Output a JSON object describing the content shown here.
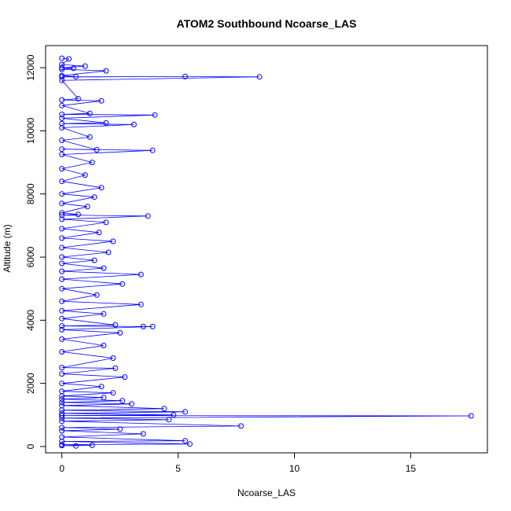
{
  "chart_data": {
    "type": "scatter",
    "title": "ATOM2 Southbound Ncoarse_LAS",
    "xlabel": "Ncoarse_LAS",
    "ylabel": "Altitude (m)",
    "xlim": [
      -0.7,
      18.3
    ],
    "ylim": [
      -200,
      12700
    ],
    "xticks": [
      0,
      5,
      10,
      15
    ],
    "yticks": [
      0,
      2000,
      4000,
      6000,
      8000,
      10000,
      12000
    ],
    "grid": false,
    "color": "#0000ff",
    "markers": "open circles connected by lines",
    "series": [
      {
        "x": [
          0.0,
          0.3,
          0.0,
          1.0,
          0.0,
          0.5,
          0.0,
          1.9,
          0.0,
          0.6,
          0.0,
          5.3,
          8.5,
          0.0,
          0.7,
          0.0,
          1.7,
          0.0,
          1.2,
          0.0,
          4.0,
          0.0,
          1.9,
          0.0,
          3.1,
          0.0,
          1.2,
          0.0,
          1.5,
          0.0,
          3.9,
          0.0,
          1.3,
          0.0,
          1.0,
          0.0,
          1.7,
          0.0,
          1.4,
          0.0,
          1.1,
          0.0,
          0.7,
          0.0,
          3.7,
          0.0,
          1.9,
          0.0,
          1.6,
          0.0,
          2.2,
          0.0,
          2.0,
          0.0,
          1.4,
          0.0,
          1.8,
          0.0,
          3.4,
          0.0,
          2.6,
          0.0,
          1.5,
          0.0,
          3.4,
          0.0,
          1.8,
          0.0,
          2.3,
          0.0,
          3.5,
          3.9,
          0.0,
          2.5,
          0.0,
          1.8,
          0.0,
          2.2,
          0.0,
          2.3,
          0.0,
          2.7,
          0.0,
          1.7,
          0.0,
          2.2,
          0.0,
          1.8,
          0.0,
          2.6,
          0.0,
          3.0,
          0.0,
          4.4,
          0.0,
          5.3,
          0.0,
          4.8,
          0.0,
          17.6,
          0.0,
          4.6,
          0.0,
          7.7,
          0.0,
          2.5,
          0.0,
          3.5,
          0.0,
          5.3,
          0.0,
          5.5,
          0.0,
          1.3,
          0.0,
          0.6
        ],
        "y": [
          12300,
          12280,
          12100,
          12050,
          12000,
          11980,
          11950,
          11900,
          11750,
          11720,
          11710,
          11720,
          11710,
          11600,
          11020,
          10980,
          10950,
          10800,
          10550,
          10520,
          10500,
          10400,
          10250,
          10230,
          10200,
          10100,
          9800,
          9700,
          9400,
          9420,
          9380,
          9250,
          9000,
          8800,
          8600,
          8400,
          8200,
          8000,
          7900,
          7700,
          7600,
          7400,
          7350,
          7330,
          7300,
          7200,
          7100,
          6900,
          6780,
          6600,
          6500,
          6300,
          6150,
          6000,
          5900,
          5800,
          5650,
          5550,
          5450,
          5300,
          5150,
          5000,
          4800,
          4600,
          4500,
          4300,
          4200,
          4050,
          3850,
          3820,
          3800,
          3800,
          3700,
          3600,
          3400,
          3200,
          3000,
          2800,
          2500,
          2480,
          2300,
          2200,
          2000,
          1900,
          1750,
          1700,
          1600,
          1550,
          1500,
          1450,
          1400,
          1350,
          1300,
          1200,
          1150,
          1100,
          1050,
          1000,
          980,
          970,
          900,
          850,
          800,
          650,
          600,
          550,
          500,
          400,
          300,
          180,
          160,
          80,
          60,
          40,
          30,
          20
        ]
      }
    ]
  }
}
